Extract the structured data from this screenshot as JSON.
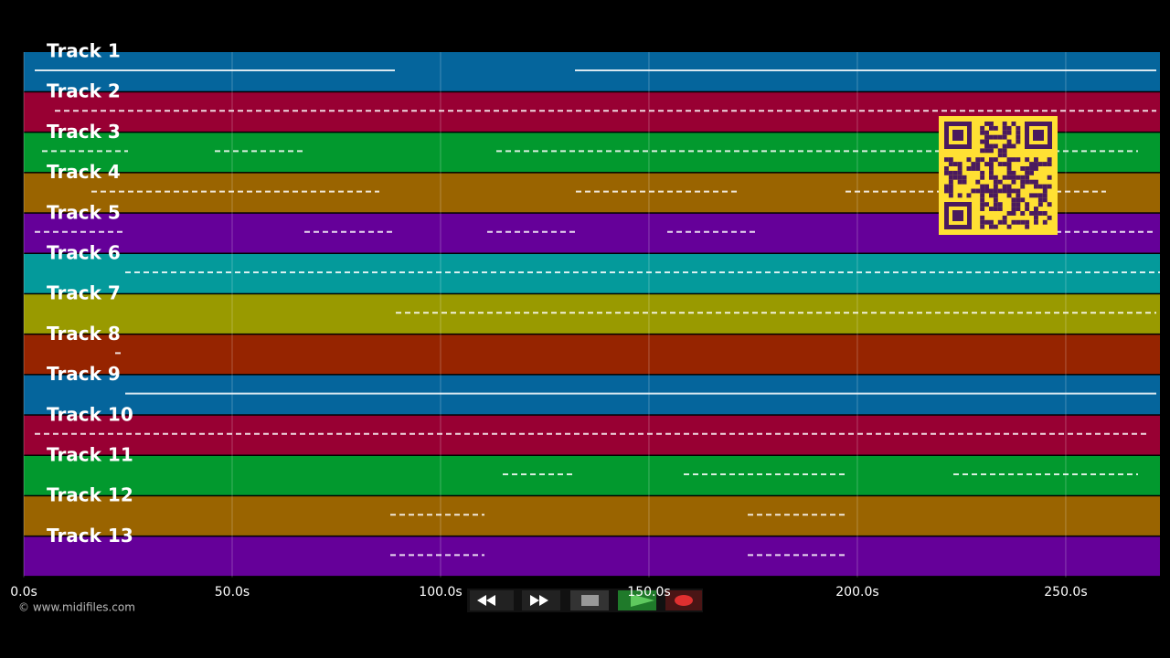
{
  "tracks": [
    {
      "name": "Track 1",
      "color": "#05659c"
    },
    {
      "name": "Track 2",
      "color": "#980033"
    },
    {
      "name": "Track 3",
      "color": "#02992e"
    },
    {
      "name": "Track 4",
      "color": "#9a6400"
    },
    {
      "name": "Track 5",
      "color": "#650099"
    },
    {
      "name": "Track 6",
      "color": "#049a9b"
    },
    {
      "name": "Track 7",
      "color": "#999a00"
    },
    {
      "name": "Track 8",
      "color": "#962400"
    },
    {
      "name": "Track 9",
      "color": "#05659c"
    },
    {
      "name": "Track 10",
      "color": "#980033"
    },
    {
      "name": "Track 11",
      "color": "#02992e"
    },
    {
      "name": "Track 12",
      "color": "#9a6400"
    },
    {
      "name": "Track 13",
      "color": "#650099"
    }
  ],
  "time_axis": {
    "xlim": [
      0,
      272.6
    ],
    "ticks": [
      {
        "value": 0,
        "label": "0.0s"
      },
      {
        "value": 50,
        "label": "50.0s"
      },
      {
        "value": 100,
        "label": "100.0s"
      },
      {
        "value": 150,
        "label": "150.0s"
      },
      {
        "value": 200,
        "label": "200.0s"
      },
      {
        "value": 250,
        "label": "250.0s"
      }
    ]
  },
  "footer": {
    "copyright": "© www.midifiles.com"
  }
}
